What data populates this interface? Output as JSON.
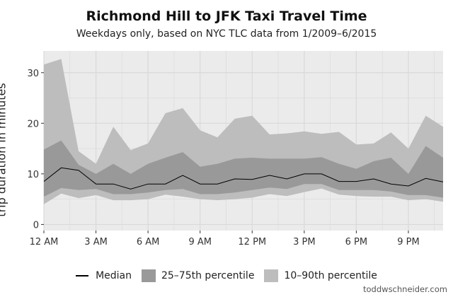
{
  "title": "Richmond Hill to JFK Taxi Travel Time",
  "subtitle": "Weekdays only, based on NYC TLC data from 1/2009–6/2015",
  "credit": "toddwschneider.com",
  "colors": {
    "panel_bg": "#ebebeb",
    "grid": "#d9d9d9",
    "band_10_90": "#bdbdbd",
    "band_25_75": "#999999",
    "median_line": "#000000"
  },
  "legend": {
    "median": "Median",
    "iqr": "25–75th percentile",
    "p10_90": "10–90th percentile"
  },
  "chart_data": {
    "type": "area",
    "title": "Richmond Hill to JFK Taxi Travel Time",
    "subtitle": "Weekdays only, based on NYC TLC data from 1/2009–6/2015",
    "xlabel": "",
    "ylabel": "trip duration in minutes",
    "x_tick_labels": [
      "12 AM",
      "3 AM",
      "6 AM",
      "9 AM",
      "12 PM",
      "3 PM",
      "6 PM",
      "9 PM"
    ],
    "x_tick_values": [
      0,
      3,
      6,
      9,
      12,
      15,
      18,
      21
    ],
    "y_ticks": [
      0,
      10,
      20,
      30
    ],
    "xlim": [
      0,
      23
    ],
    "ylim": [
      -1.2,
      34.3
    ],
    "grid": true,
    "legend_position": "bottom",
    "x": [
      0,
      1,
      2,
      3,
      4,
      5,
      6,
      7,
      8,
      9,
      10,
      11,
      12,
      13,
      14,
      15,
      16,
      17,
      18,
      19,
      20,
      21,
      22,
      23
    ],
    "series": [
      {
        "name": "Median",
        "values": [
          8.5,
          11.2,
          10.7,
          8,
          8,
          7,
          8,
          8,
          9.7,
          8,
          8,
          9,
          8.9,
          9.7,
          9,
          10,
          10,
          8.5,
          8.5,
          9,
          8,
          7.6,
          9.1,
          8.4
        ]
      },
      {
        "name": "25–75th percentile",
        "lower": [
          5.5,
          7.2,
          6.8,
          7,
          6,
          6,
          6.3,
          6.8,
          7,
          6,
          6,
          6.3,
          6.8,
          7.3,
          7,
          8,
          8,
          6.8,
          6.8,
          6.8,
          6.5,
          5.8,
          5.8,
          5.3
        ],
        "upper": [
          14.8,
          16.6,
          11.8,
          10,
          12,
          10,
          12,
          13.2,
          14.3,
          11.4,
          12,
          13,
          13.2,
          13,
          13,
          13,
          13.3,
          12,
          11,
          12.5,
          13.2,
          10,
          15.5,
          13.2
        ]
      },
      {
        "name": "10–90th percentile",
        "lower": [
          4,
          6.1,
          5.2,
          5.8,
          4.8,
          4.8,
          5,
          5.9,
          5.5,
          5,
          4.8,
          5,
          5.3,
          6,
          5.6,
          6.4,
          7.1,
          5.9,
          5.6,
          5.5,
          5.5,
          4.8,
          5,
          4.5
        ],
        "upper": [
          31.6,
          32.7,
          14.5,
          12,
          19.3,
          14.7,
          16,
          22,
          23,
          18.6,
          17.2,
          20.9,
          21.5,
          17.8,
          18,
          18.4,
          17.9,
          18.3,
          15.8,
          16,
          18.2,
          15,
          21.5,
          19.3
        ]
      }
    ]
  }
}
